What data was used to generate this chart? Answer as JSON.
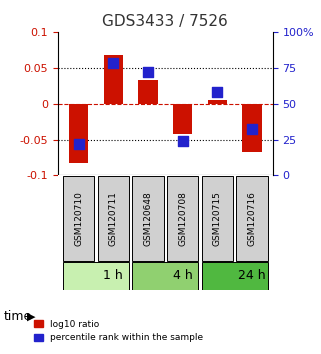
{
  "title": "GDS3433 / 7526",
  "samples": [
    "GSM120710",
    "GSM120711",
    "GSM120648",
    "GSM120708",
    "GSM120715",
    "GSM120716"
  ],
  "log10_ratio": [
    -0.082,
    0.068,
    0.033,
    -0.042,
    0.005,
    -0.068
  ],
  "percentile_rank": [
    22,
    78,
    72,
    24,
    58,
    32
  ],
  "ylim_left": [
    -0.1,
    0.1
  ],
  "ylim_right": [
    0,
    100
  ],
  "yticks_left": [
    -0.1,
    -0.05,
    0,
    0.05,
    0.1
  ],
  "ytick_labels_left": [
    "-0.1",
    "-0.05",
    "0",
    "0.05",
    "0.1"
  ],
  "yticks_right": [
    0,
    25,
    50,
    75,
    100
  ],
  "ytick_labels_right": [
    "0",
    "25",
    "50",
    "75",
    "100%"
  ],
  "time_groups": [
    {
      "label": "1 h",
      "start": 0,
      "end": 2,
      "color": "#c8f0b0"
    },
    {
      "label": "4 h",
      "start": 2,
      "end": 4,
      "color": "#90d070"
    },
    {
      "label": "24 h",
      "start": 4,
      "end": 6,
      "color": "#50b840"
    }
  ],
  "bar_color": "#cc1100",
  "dot_color": "#2222cc",
  "bar_width": 0.55,
  "dot_size": 60,
  "grid_color": "#000000",
  "grid_linestyle": ":",
  "zero_line_color": "#cc1100",
  "zero_linestyle": "--",
  "sample_box_color": "#d0d0d0",
  "legend_red_label": "log10 ratio",
  "legend_blue_label": "percentile rank within the sample",
  "xlabel": "time",
  "background_color": "#ffffff"
}
